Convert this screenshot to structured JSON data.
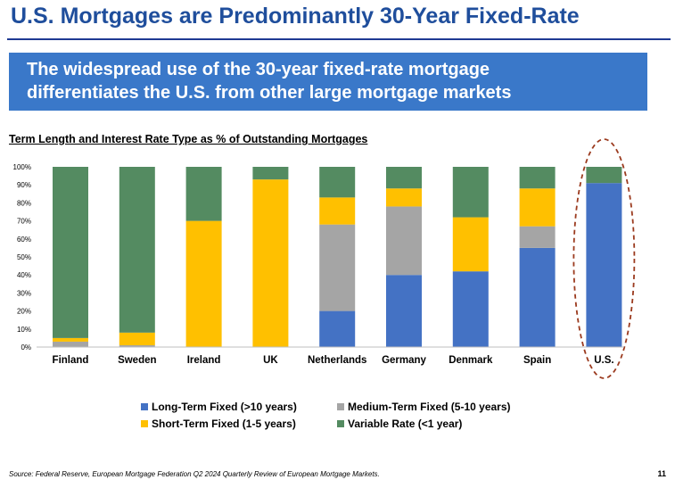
{
  "slide": {
    "title": "U.S. Mortgages are Predominantly 30-Year Fixed-Rate",
    "banner_line1": "The widespread use of the 30-year fixed-rate mortgage",
    "banner_line2": "differentiates the U.S. from other large mortgage markets",
    "source": "Source: Federal Reserve, European Mortgage Federation Q2 2024 Quarterly Review of European Mortgage Markets.",
    "page_number": "11"
  },
  "chart_data": {
    "type": "bar",
    "stacked": true,
    "title": "Term Length and Interest Rate Type as % of Outstanding Mortgages",
    "categories": [
      "Finland",
      "Sweden",
      "Ireland",
      "UK",
      "Netherlands",
      "Germany",
      "Denmark",
      "Spain",
      "U.S."
    ],
    "series": [
      {
        "name": "Long-Term Fixed (>10 years)",
        "color": "#4472c4",
        "values": [
          0,
          0,
          0,
          0,
          20,
          40,
          42,
          55,
          91
        ]
      },
      {
        "name": "Medium-Term Fixed (5-10 years)",
        "color": "#a5a5a5",
        "values": [
          3,
          1,
          0,
          0,
          48,
          38,
          0,
          12,
          0
        ]
      },
      {
        "name": "Short-Term Fixed (1-5 years)",
        "color": "#ffc000",
        "values": [
          2,
          7,
          70,
          93,
          15,
          10,
          30,
          21,
          0
        ]
      },
      {
        "name": "Variable Rate (<1 year)",
        "color": "#548b61",
        "values": [
          95,
          92,
          30,
          7,
          17,
          12,
          28,
          12,
          9
        ]
      }
    ],
    "ylim": [
      0,
      100
    ],
    "yticks": [
      "0%",
      "10%",
      "20%",
      "30%",
      "40%",
      "50%",
      "60%",
      "70%",
      "80%",
      "90%",
      "100%"
    ],
    "highlight": "U.S.",
    "legend_position": "bottom"
  }
}
